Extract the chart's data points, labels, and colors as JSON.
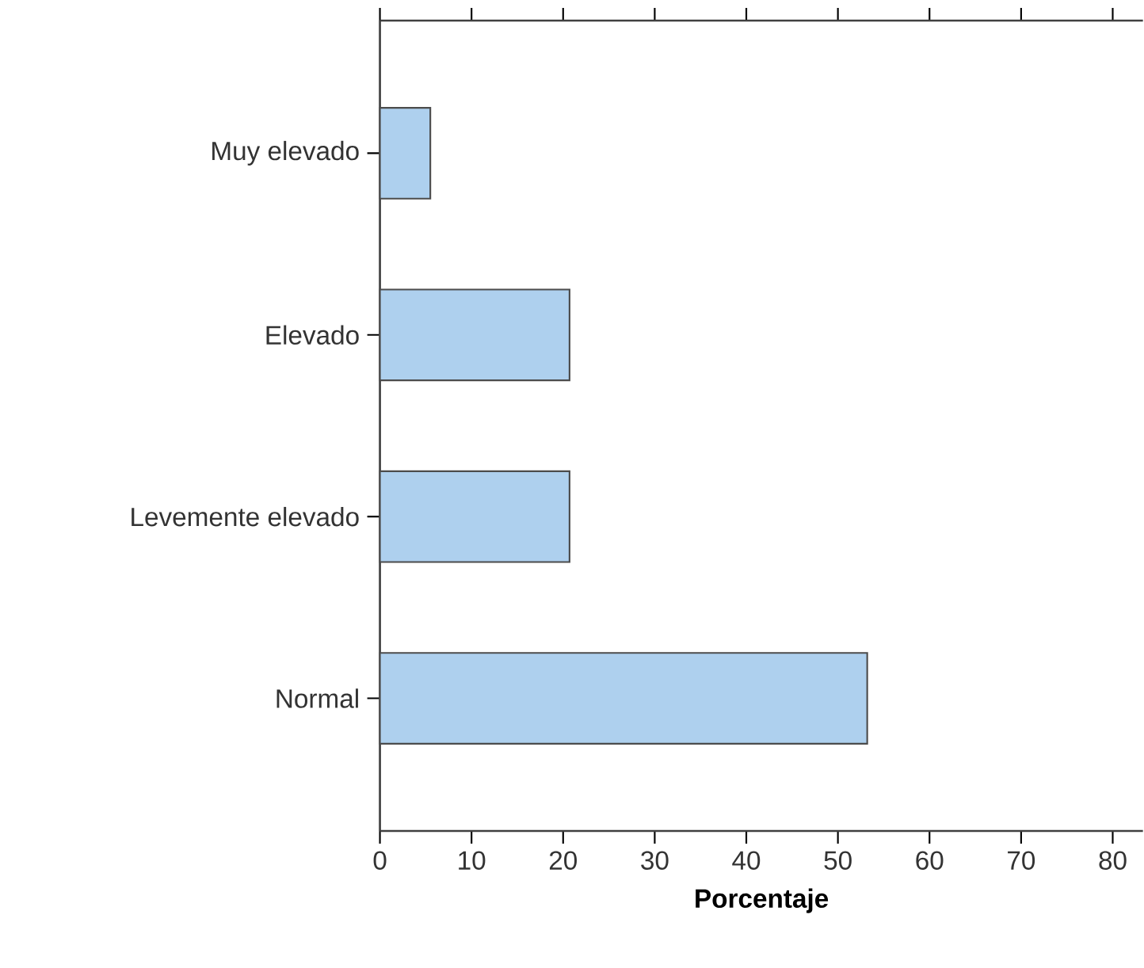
{
  "chart_data": {
    "type": "bar",
    "orientation": "horizontal",
    "xlabel": "Porcentaje",
    "categories": [
      "Muy elevado",
      "Elevado",
      "Levemente elevado",
      "Normal"
    ],
    "values": [
      5.5,
      20.7,
      20.7,
      53.2
    ],
    "color": "#aed0ee",
    "xlim": [
      0,
      83.3
    ],
    "xticks": [
      0,
      10,
      20,
      30,
      40,
      50,
      60,
      70,
      80
    ],
    "grid": false
  }
}
